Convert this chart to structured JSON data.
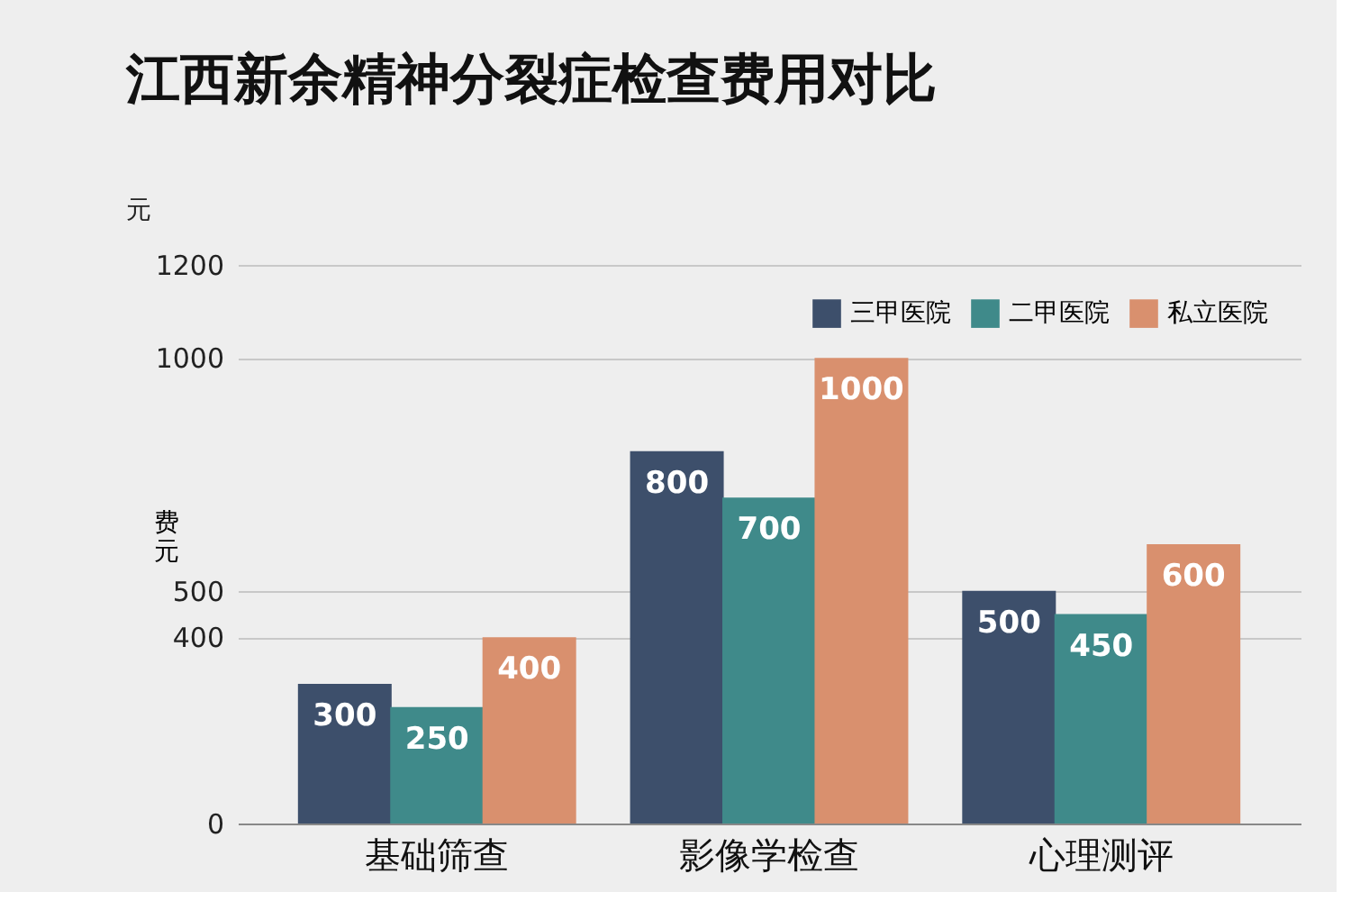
{
  "chart_data": {
    "type": "bar",
    "title": "江西新余精神分裂症检查费用对比",
    "ylabel": "费元",
    "annotations": [
      "元"
    ],
    "categories": [
      "基础筛查",
      "影像学检查",
      "心理测评"
    ],
    "series": [
      {
        "name": "三甲医院",
        "color": "#3d4f6b",
        "values": [
          300,
          800,
          500
        ]
      },
      {
        "name": "二甲医院",
        "color": "#3f8a8a",
        "values": [
          250,
          700,
          450
        ]
      },
      {
        "name": "私立医院",
        "color": "#d9906e",
        "values": [
          400,
          1000,
          600
        ]
      }
    ],
    "ylim": [
      0,
      1200
    ],
    "yticks": [
      0,
      400,
      500,
      1000,
      1200
    ],
    "grid": "y",
    "legend": "top right",
    "data_labels": true
  }
}
